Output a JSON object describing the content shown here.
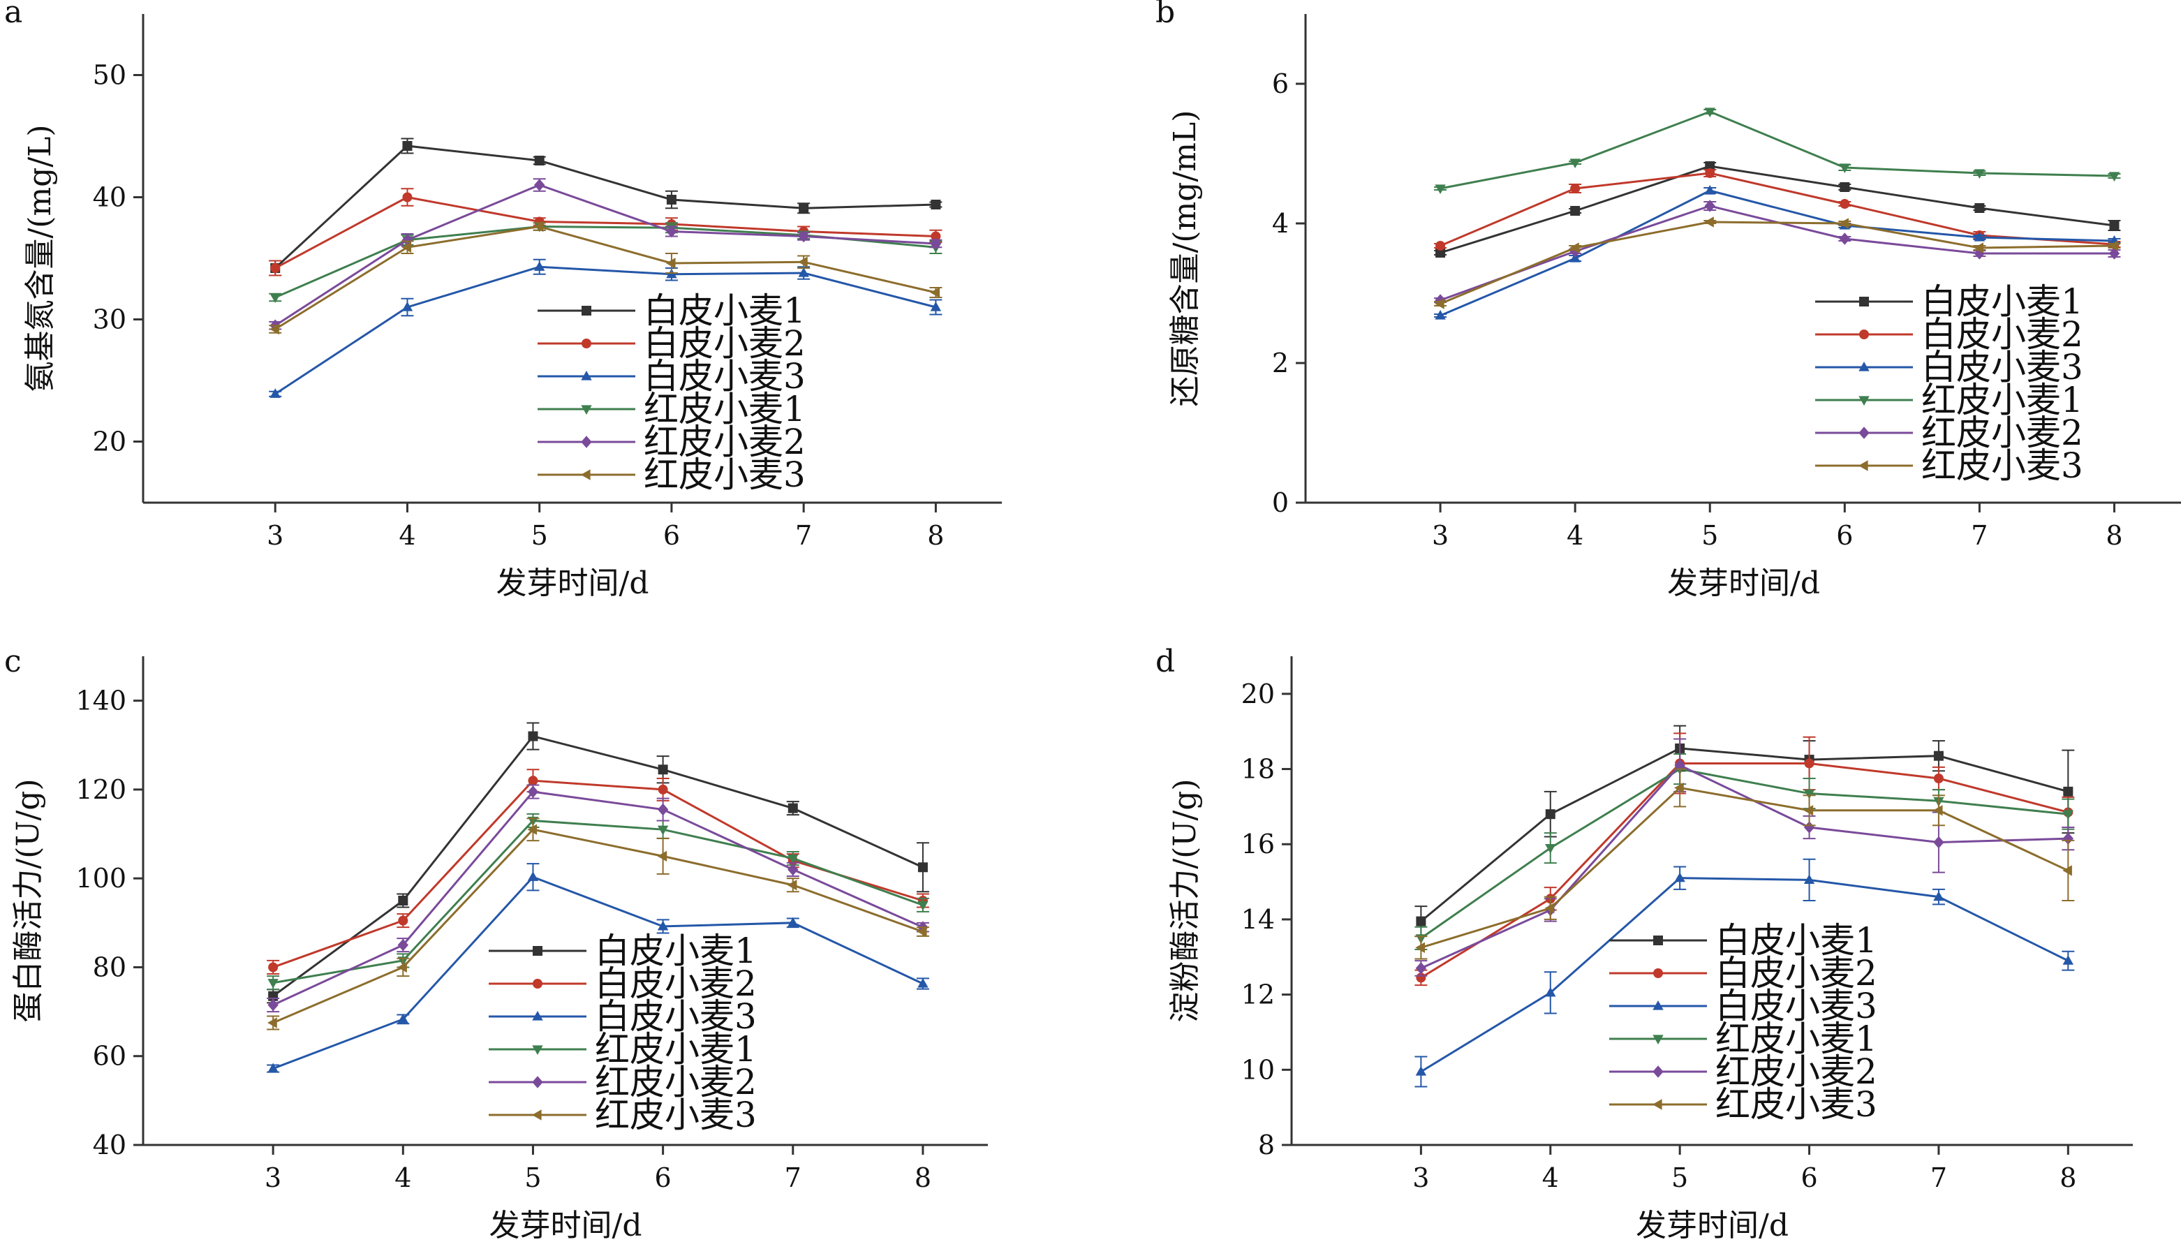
{
  "colors": {
    "axis": "#333333",
    "series": [
      "#333333",
      "#c0392b",
      "#2457a8",
      "#3f7f4f",
      "#7a4a9a",
      "#8c6d2c"
    ]
  },
  "marker_shapes": [
    "square",
    "circle",
    "triangle-up",
    "triangle-down",
    "diamond",
    "triangle-left"
  ],
  "chart_data": [
    {
      "type": "line",
      "panel_label": "a",
      "xlabel": "发芽时间/d",
      "ylabel": "氨基氮含量/(mg/L)",
      "x": [
        3,
        4,
        5,
        6,
        7,
        8
      ],
      "xlim": [
        2,
        8.5
      ],
      "ylim": [
        15,
        55
      ],
      "yticks": [
        20,
        30,
        40,
        50
      ],
      "legend_position": "center-bottom",
      "series": [
        {
          "name": "白皮小麦1",
          "values": [
            34.2,
            44.2,
            43.0,
            39.8,
            39.1,
            39.4
          ],
          "errors": [
            0.6,
            0.6,
            0.3,
            0.7,
            0.4,
            0.2
          ]
        },
        {
          "name": "白皮小麦2",
          "values": [
            34.2,
            40.0,
            38.0,
            37.8,
            37.2,
            36.8
          ],
          "errors": [
            0.6,
            0.7,
            0.3,
            0.5,
            0.4,
            0.5
          ]
        },
        {
          "name": "白皮小麦3",
          "values": [
            23.9,
            31.0,
            34.3,
            33.7,
            33.8,
            31.0
          ],
          "errors": [
            0.2,
            0.7,
            0.6,
            0.5,
            0.5,
            0.6
          ]
        },
        {
          "name": "红皮小麦1",
          "values": [
            31.8,
            36.5,
            37.6,
            37.5,
            36.9,
            35.9
          ],
          "errors": [
            0.3,
            0.4,
            0.3,
            0.4,
            0.3,
            0.5
          ]
        },
        {
          "name": "红皮小麦2",
          "values": [
            29.5,
            36.5,
            41.0,
            37.2,
            36.8,
            36.2
          ],
          "errors": [
            0.3,
            0.5,
            0.5,
            0.4,
            0.3,
            0.3
          ]
        },
        {
          "name": "红皮小麦3",
          "values": [
            29.2,
            35.9,
            37.6,
            34.6,
            34.7,
            32.2
          ],
          "errors": [
            0.3,
            0.5,
            0.3,
            0.8,
            0.5,
            0.4
          ]
        }
      ]
    },
    {
      "type": "line",
      "panel_label": "b",
      "xlabel": "发芽时间/d",
      "ylabel": "还原糖含量/(mg/mL)",
      "x": [
        3,
        4,
        5,
        6,
        7,
        8
      ],
      "xlim": [
        2,
        8.5
      ],
      "ylim": [
        0,
        7
      ],
      "yticks": [
        0,
        2,
        4,
        6
      ],
      "legend_position": "bottom-right",
      "series": [
        {
          "name": "白皮小麦1",
          "values": [
            3.58,
            4.18,
            4.82,
            4.52,
            4.22,
            3.97
          ],
          "errors": [
            0.03,
            0.03,
            0.05,
            0.04,
            0.03,
            0.07
          ]
        },
        {
          "name": "白皮小麦2",
          "values": [
            3.68,
            4.5,
            4.72,
            4.28,
            3.83,
            3.7
          ],
          "errors": [
            0.03,
            0.06,
            0.05,
            0.03,
            0.05,
            0.04
          ]
        },
        {
          "name": "白皮小麦3",
          "values": [
            2.68,
            3.5,
            4.47,
            3.97,
            3.8,
            3.75
          ],
          "errors": [
            0.02,
            0.04,
            0.04,
            0.03,
            0.03,
            0.03
          ]
        },
        {
          "name": "红皮小麦1",
          "values": [
            4.5,
            4.87,
            5.6,
            4.8,
            4.72,
            4.68
          ],
          "errors": [
            0.02,
            0.02,
            0.03,
            0.04,
            0.03,
            0.03
          ]
        },
        {
          "name": "红皮小麦2",
          "values": [
            2.9,
            3.6,
            4.25,
            3.78,
            3.57,
            3.57
          ],
          "errors": [
            0.03,
            0.03,
            0.06,
            0.03,
            0.04,
            0.05
          ]
        },
        {
          "name": "红皮小麦3",
          "values": [
            2.85,
            3.65,
            4.02,
            4.0,
            3.65,
            3.68
          ],
          "errors": [
            0.03,
            0.03,
            0.02,
            0.03,
            0.03,
            0.03
          ]
        }
      ]
    },
    {
      "type": "line",
      "panel_label": "c",
      "xlabel": "发芽时间/d",
      "ylabel": "蛋白酶活力/(U/g)",
      "x": [
        3,
        4,
        5,
        6,
        7,
        8
      ],
      "xlim": [
        2,
        8.5
      ],
      "ylim": [
        40,
        150
      ],
      "yticks": [
        40,
        60,
        80,
        100,
        120,
        140
      ],
      "legend_position": "bottom-center",
      "series": [
        {
          "name": "白皮小麦1",
          "values": [
            73.5,
            95.0,
            132.0,
            124.5,
            115.8,
            102.5
          ],
          "errors": [
            1.5,
            1.5,
            3.0,
            3.0,
            1.5,
            5.5
          ]
        },
        {
          "name": "白皮小麦2",
          "values": [
            80.0,
            90.5,
            122.0,
            120.0,
            104.0,
            95.0
          ],
          "errors": [
            1.5,
            1.5,
            2.5,
            2.5,
            1.5,
            1.5
          ]
        },
        {
          "name": "白皮小麦3",
          "values": [
            57.2,
            68.3,
            100.3,
            89.2,
            90.0,
            76.3
          ],
          "errors": [
            0.8,
            1.0,
            3.0,
            1.5,
            1.0,
            1.2
          ]
        },
        {
          "name": "红皮小麦1",
          "values": [
            76.5,
            81.5,
            113.0,
            111.0,
            104.5,
            94.0
          ],
          "errors": [
            1.5,
            1.5,
            1.5,
            2.0,
            1.5,
            1.5
          ]
        },
        {
          "name": "红皮小麦2",
          "values": [
            71.5,
            85.0,
            119.5,
            115.5,
            102.0,
            89.0
          ],
          "errors": [
            1.5,
            1.5,
            1.5,
            2.5,
            1.5,
            1.0
          ]
        },
        {
          "name": "红皮小麦3",
          "values": [
            67.5,
            80.0,
            111.0,
            105.0,
            98.5,
            88.0
          ],
          "errors": [
            1.5,
            2.0,
            2.5,
            4.0,
            1.5,
            1.0
          ]
        }
      ]
    },
    {
      "type": "line",
      "panel_label": "d",
      "xlabel": "发芽时间/d",
      "ylabel": "淀粉酶活力/(U/g)",
      "x": [
        3,
        4,
        5,
        6,
        7,
        8
      ],
      "xlim": [
        2,
        8.5
      ],
      "ylim": [
        8,
        21
      ],
      "yticks": [
        8,
        10,
        12,
        14,
        16,
        18,
        20
      ],
      "legend_position": "bottom-right",
      "series": [
        {
          "name": "白皮小麦1",
          "values": [
            13.95,
            16.8,
            18.55,
            18.25,
            18.35,
            17.4
          ],
          "errors": [
            0.4,
            0.6,
            0.6,
            0.5,
            0.4,
            1.1
          ]
        },
        {
          "name": "白皮小麦2",
          "values": [
            12.45,
            14.55,
            18.15,
            18.15,
            17.75,
            16.85
          ],
          "errors": [
            0.2,
            0.3,
            0.8,
            0.7,
            0.3,
            0.4
          ]
        },
        {
          "name": "白皮小麦3",
          "values": [
            9.95,
            12.05,
            15.1,
            15.05,
            14.6,
            12.9
          ],
          "errors": [
            0.4,
            0.55,
            0.3,
            0.55,
            0.2,
            0.25
          ]
        },
        {
          "name": "红皮小麦1",
          "values": [
            13.5,
            15.9,
            18.0,
            17.35,
            17.15,
            16.8
          ],
          "errors": [
            0.3,
            0.4,
            0.4,
            0.4,
            0.3,
            0.4
          ]
        },
        {
          "name": "红皮小麦2",
          "values": [
            12.7,
            14.25,
            18.1,
            16.45,
            16.05,
            16.15
          ],
          "errors": [
            0.2,
            0.3,
            0.7,
            0.3,
            0.8,
            0.3
          ]
        },
        {
          "name": "红皮小麦3",
          "values": [
            13.25,
            14.3,
            17.5,
            16.9,
            16.9,
            15.3
          ],
          "errors": [
            0.3,
            0.3,
            0.5,
            0.4,
            0.4,
            0.8
          ]
        }
      ]
    }
  ]
}
